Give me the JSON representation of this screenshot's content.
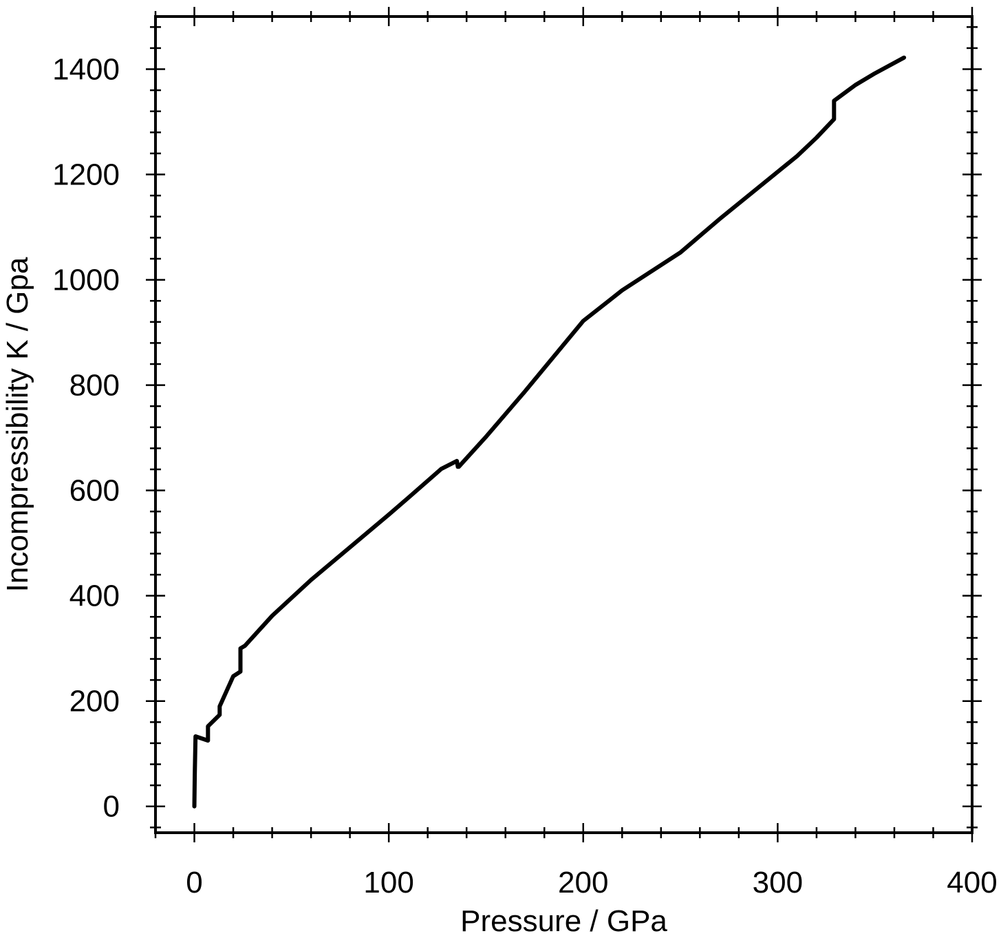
{
  "chart_data": {
    "type": "line",
    "xlabel": "Pressure / GPa",
    "ylabel": "Incompressibility K / Gpa",
    "xlim": [
      -20,
      400
    ],
    "ylim": [
      -50,
      1500
    ],
    "x_ticks": [
      0,
      100,
      200,
      300,
      400
    ],
    "y_ticks": [
      0,
      200,
      400,
      600,
      800,
      1000,
      1200,
      1400
    ],
    "x_minor_step": 20,
    "y_minor_step": 40,
    "grid": false,
    "line_color": "#000000",
    "series": [
      {
        "x": [
          0,
          0.2,
          0.4,
          0.6,
          7,
          7,
          13,
          13,
          20,
          23.7,
          23.7,
          26,
          40,
          60,
          80,
          100,
          110,
          127,
          135,
          135.5,
          136,
          150,
          170,
          200,
          220,
          250,
          270,
          290,
          300,
          310,
          320,
          329,
          329,
          340,
          350,
          365
        ],
        "y": [
          0,
          60,
          100,
          133,
          125,
          152,
          174,
          190,
          247,
          256,
          300,
          305,
          362,
          430,
          492,
          554,
          586,
          641,
          656,
          645,
          645,
          702,
          788,
          922,
          980,
          1052,
          1115,
          1175,
          1205,
          1235,
          1270,
          1305,
          1340,
          1370,
          1392,
          1422
        ]
      }
    ]
  }
}
